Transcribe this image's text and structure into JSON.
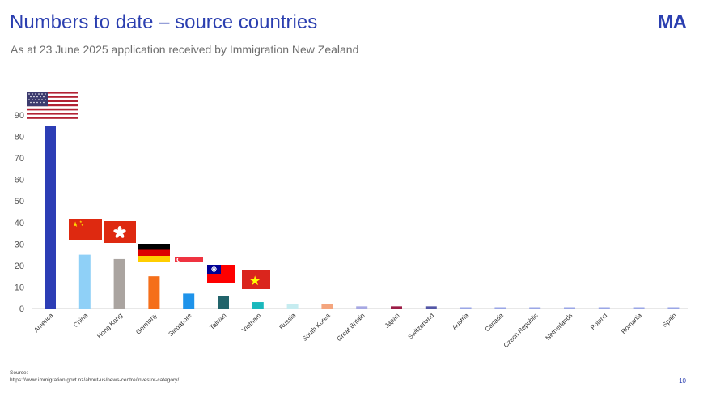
{
  "header": {
    "title": "Numbers to date – source countries",
    "subtitle": "As at 23 June 2025 application received by Immigration New Zealand",
    "logo": "MA"
  },
  "footer": {
    "source_label": "Source:",
    "source_url": "https://www.immigration.govt.nz/about-us/news-centre/investor-category/",
    "page_number": "10"
  },
  "chart_data": {
    "type": "bar",
    "title": "",
    "xlabel": "",
    "ylabel": "",
    "ylim": [
      0,
      90
    ],
    "yticks": [
      0,
      10,
      20,
      30,
      40,
      50,
      60,
      70,
      80,
      90
    ],
    "grid": false,
    "categories": [
      "America",
      "China",
      "Hong Kong",
      "Germany",
      "Singapore",
      "Taiwan",
      "Vietnam",
      "Russia",
      "South Korea",
      "Great Britain",
      "Japan",
      "Switzerland",
      "Austria",
      "Canada",
      "Czech Republic",
      "Netherlands",
      "Poland",
      "Romania",
      "Spain"
    ],
    "values": [
      85,
      25,
      23,
      15,
      7,
      6,
      3,
      2,
      2,
      1,
      1,
      1,
      0.5,
      0.5,
      0.5,
      0.5,
      0.5,
      0.5,
      0.5
    ],
    "colors": [
      "#2c3db5",
      "#8fd0f7",
      "#aaa4a0",
      "#f56f1a",
      "#1e93ea",
      "#22646b",
      "#1ab8bc",
      "#c6ecf0",
      "#f4a57e",
      "#a7a8e3",
      "#9c1d46",
      "#5356a6",
      "#9aa6e6",
      "#9aa6e6",
      "#9aa6e6",
      "#9aa6e6",
      "#9aa6e6",
      "#9aa6e6",
      "#9aa6e6"
    ],
    "flags": [
      {
        "category": "America",
        "icon": "us-flag-icon"
      },
      {
        "category": "China",
        "icon": "china-flag-icon"
      },
      {
        "category": "Hong Kong",
        "icon": "hong-kong-flag-icon"
      },
      {
        "category": "Germany",
        "icon": "germany-flag-icon"
      },
      {
        "category": "Singapore",
        "icon": "singapore-flag-icon"
      },
      {
        "category": "Taiwan",
        "icon": "taiwan-flag-icon"
      },
      {
        "category": "Vietnam",
        "icon": "vietnam-flag-icon"
      }
    ]
  }
}
